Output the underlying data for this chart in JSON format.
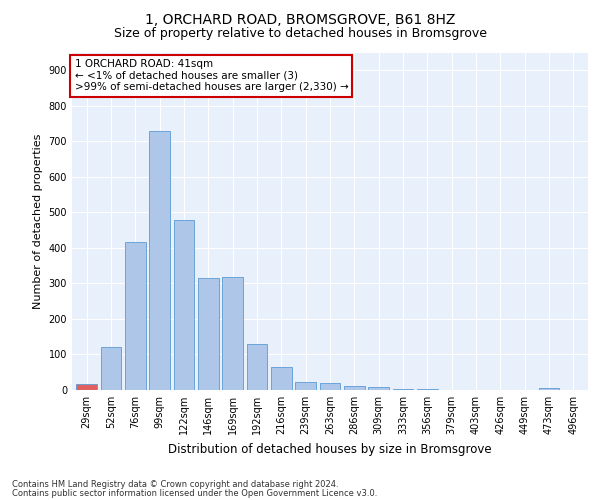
{
  "title": "1, ORCHARD ROAD, BROMSGROVE, B61 8HZ",
  "subtitle": "Size of property relative to detached houses in Bromsgrove",
  "xlabel": "Distribution of detached houses by size in Bromsgrove",
  "ylabel": "Number of detached properties",
  "bar_color": "#aec6e8",
  "bar_edge_color": "#5b9bd5",
  "highlight_color": "#e06060",
  "categories": [
    "29sqm",
    "52sqm",
    "76sqm",
    "99sqm",
    "122sqm",
    "146sqm",
    "169sqm",
    "192sqm",
    "216sqm",
    "239sqm",
    "263sqm",
    "286sqm",
    "309sqm",
    "333sqm",
    "356sqm",
    "379sqm",
    "403sqm",
    "426sqm",
    "449sqm",
    "473sqm",
    "496sqm"
  ],
  "values": [
    17,
    120,
    418,
    730,
    478,
    315,
    318,
    130,
    65,
    22,
    20,
    10,
    8,
    2,
    2,
    1,
    0,
    0,
    0,
    5,
    1
  ],
  "highlight_bar_index": 0,
  "ylim": [
    0,
    950
  ],
  "yticks": [
    0,
    100,
    200,
    300,
    400,
    500,
    600,
    700,
    800,
    900
  ],
  "annotation_text": "1 ORCHARD ROAD: 41sqm\n← <1% of detached houses are smaller (3)\n>99% of semi-detached houses are larger (2,330) →",
  "annotation_box_color": "#ffffff",
  "annotation_box_edgecolor": "#cc0000",
  "footer1": "Contains HM Land Registry data © Crown copyright and database right 2024.",
  "footer2": "Contains public sector information licensed under the Open Government Licence v3.0.",
  "plot_bg_color": "#e8f0fb",
  "title_fontsize": 10,
  "subtitle_fontsize": 9,
  "tick_fontsize": 7,
  "ylabel_fontsize": 8,
  "xlabel_fontsize": 8.5
}
